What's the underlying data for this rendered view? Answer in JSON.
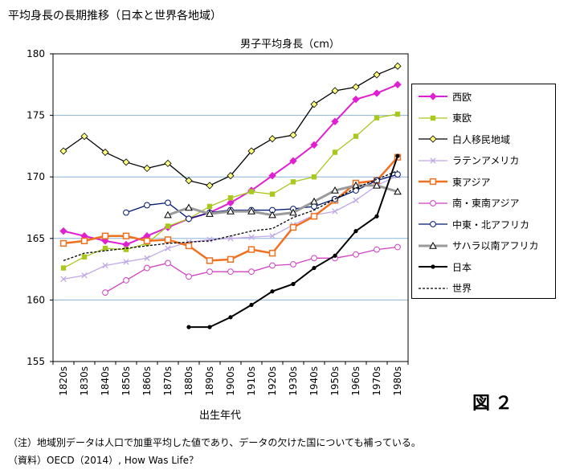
{
  "header": {
    "title": "平均身長の長期推移（日本と世界各地域）",
    "figure_label": "図２"
  },
  "notes": {
    "note": "（注）地域別データは人口で加重平均した値であり、データの欠けた国についても補っている。",
    "source": "（資料）OECD（2014）, How Was Life？"
  },
  "chart_data": {
    "type": "line",
    "title": "男子平均身長（cm）",
    "xlabel": "出生年代",
    "ylabel": "",
    "ylim": [
      155,
      180
    ],
    "yticks": [
      155,
      160,
      165,
      170,
      175,
      180
    ],
    "grid": true,
    "legend_position": "right",
    "categories": [
      "1820s",
      "1830s",
      "1840s",
      "1850s",
      "1860s",
      "1870s",
      "1880s",
      "1890s",
      "1900s",
      "1910s",
      "1920s",
      "1930s",
      "1940s",
      "1950s",
      "1960s",
      "1970s",
      "1980s"
    ],
    "series": [
      {
        "name": "西欧",
        "color": "#e020d0",
        "marker": "diamond",
        "values": [
          165.6,
          165.2,
          164.8,
          164.5,
          165.2,
          165.9,
          166.6,
          167.1,
          167.9,
          168.9,
          170.1,
          171.3,
          172.6,
          174.5,
          176.3,
          176.8,
          177.5
        ]
      },
      {
        "name": "東欧",
        "color": "#a8c820",
        "marker": "square",
        "values": [
          162.6,
          163.5,
          164.2,
          164.1,
          164.6,
          166.0,
          166.6,
          167.6,
          168.3,
          168.8,
          168.6,
          169.6,
          170.0,
          172.0,
          173.3,
          174.8,
          175.1
        ]
      },
      {
        "name": "白人移民地域",
        "color": "#000000",
        "marker": "diamond-hollow",
        "markerFill": "#ffff80",
        "values": [
          172.1,
          173.3,
          172.0,
          171.2,
          170.7,
          171.1,
          169.7,
          169.3,
          170.1,
          172.1,
          173.1,
          173.4,
          175.9,
          177.0,
          177.3,
          178.3,
          179.0
        ]
      },
      {
        "name": "ラテンアメリカ",
        "color": "#c0a8e8",
        "marker": "x",
        "values": [
          161.7,
          162.0,
          162.8,
          163.1,
          163.4,
          164.2,
          164.7,
          164.9,
          165.0,
          165.1,
          165.2,
          166.1,
          166.9,
          167.2,
          168.1,
          169.3,
          170.1
        ]
      },
      {
        "name": "東アジア",
        "color": "#f07020",
        "marker": "square-hollow",
        "values": [
          164.6,
          164.8,
          165.2,
          165.2,
          164.8,
          164.9,
          164.4,
          163.2,
          163.3,
          164.1,
          163.8,
          165.9,
          166.8,
          168.1,
          169.5,
          169.7,
          171.6
        ]
      },
      {
        "name": "南・東南アジア",
        "color": "#d040c0",
        "marker": "circle-hollow",
        "values": [
          null,
          null,
          160.6,
          161.6,
          162.6,
          163.0,
          161.9,
          162.3,
          162.3,
          162.3,
          162.8,
          162.9,
          163.4,
          163.4,
          163.7,
          164.1,
          164.3
        ]
      },
      {
        "name": "中東・北アフリカ",
        "color": "#001870",
        "marker": "circle-hollow",
        "values": [
          null,
          null,
          null,
          167.1,
          167.7,
          167.9,
          166.6,
          167.1,
          167.3,
          167.3,
          167.3,
          167.4,
          167.6,
          168.2,
          168.9,
          169.7,
          170.2
        ]
      },
      {
        "name": "サハラ以南アフリカ",
        "color": "#9a9a9a",
        "marker": "triangle-hollow",
        "values": [
          null,
          null,
          null,
          null,
          null,
          166.9,
          167.5,
          167.0,
          167.2,
          167.2,
          166.9,
          167.1,
          168.0,
          168.9,
          169.3,
          169.3,
          168.8
        ]
      },
      {
        "name": "日本",
        "color": "#000000",
        "marker": "dot",
        "values": [
          null,
          null,
          null,
          null,
          null,
          null,
          157.8,
          157.8,
          158.6,
          159.6,
          160.7,
          161.3,
          162.6,
          163.6,
          165.6,
          166.8,
          171.7
        ]
      },
      {
        "name": "世界",
        "color": "#000000",
        "marker": "none",
        "dashed": true,
        "values": [
          163.2,
          163.8,
          164.0,
          164.2,
          164.4,
          164.6,
          164.7,
          164.8,
          165.2,
          165.6,
          165.8,
          166.7,
          167.3,
          168.2,
          169.1,
          169.8,
          170.5
        ]
      }
    ]
  }
}
